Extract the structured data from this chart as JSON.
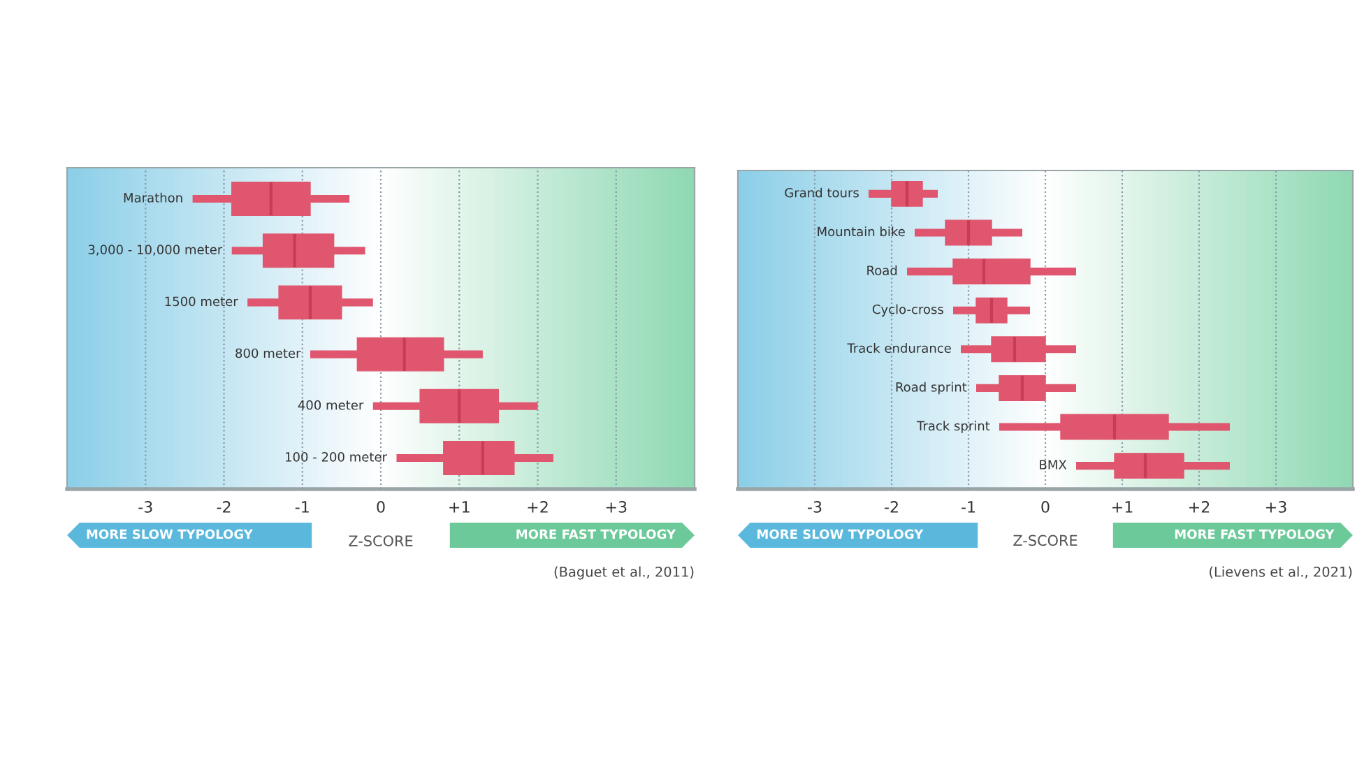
{
  "chart_data": [
    {
      "type": "box",
      "categories": [
        "Marathon",
        "3,000 - 10,000 meter",
        "1500 meter",
        "800 meter",
        "400 meter",
        "100 - 200 meter"
      ],
      "boxes": [
        {
          "low": -2.4,
          "q1": -1.9,
          "median": -1.4,
          "q3": -0.9,
          "high": -0.4
        },
        {
          "low": -1.9,
          "q1": -1.5,
          "median": -1.1,
          "q3": -0.6,
          "high": -0.2
        },
        {
          "low": -1.7,
          "q1": -1.3,
          "median": -0.9,
          "q3": -0.5,
          "high": -0.1
        },
        {
          "low": -0.9,
          "q1": -0.3,
          "median": 0.3,
          "q3": 0.8,
          "high": 1.3
        },
        {
          "low": -0.1,
          "q1": 0.5,
          "median": 1.0,
          "q3": 1.5,
          "high": 2.0
        },
        {
          "low": 0.2,
          "q1": 0.8,
          "median": 1.3,
          "q3": 1.7,
          "high": 2.2
        }
      ],
      "color": "#e0566e",
      "xlim": [
        -4,
        4
      ],
      "xticks": [
        {
          "value": -3,
          "label": "-3"
        },
        {
          "value": -2,
          "label": "-2"
        },
        {
          "value": -1,
          "label": "-1"
        },
        0,
        {
          "value": 1,
          "label": "+1"
        },
        {
          "value": 2,
          "label": "+2"
        },
        {
          "value": 3,
          "label": "+3"
        }
      ],
      "grid": "x",
      "orientation": "horizontal",
      "xlabel": "Z-SCORE",
      "annotations": [
        "MORE SLOW TYPOLOGY",
        "MORE FAST TYPOLOGY",
        "(Baguet et al., 2011)"
      ]
    },
    {
      "type": "box",
      "categories": [
        "Grand tours",
        "Mountain bike",
        "Road",
        "Cyclo-cross",
        "Track endurance",
        "Road sprint",
        "Track sprint",
        "BMX"
      ],
      "boxes": [
        {
          "low": -2.3,
          "q1": -2.0,
          "median": -1.8,
          "q3": -1.6,
          "high": -1.4
        },
        {
          "low": -1.7,
          "q1": -1.3,
          "median": -1.0,
          "q3": -0.7,
          "high": -0.3
        },
        {
          "low": -1.8,
          "q1": -1.2,
          "median": -0.8,
          "q3": -0.2,
          "high": 0.4
        },
        {
          "low": -1.2,
          "q1": -0.9,
          "median": -0.7,
          "q3": -0.5,
          "high": -0.2
        },
        {
          "low": -1.1,
          "q1": -0.7,
          "median": -0.4,
          "q3": 0.0,
          "high": 0.4
        },
        {
          "low": -0.9,
          "q1": -0.6,
          "median": -0.3,
          "q3": 0.0,
          "high": 0.4
        },
        {
          "low": -0.6,
          "q1": 0.2,
          "median": 0.9,
          "q3": 1.6,
          "high": 2.4
        },
        {
          "low": 0.4,
          "q1": 0.9,
          "median": 1.3,
          "q3": 1.8,
          "high": 2.4
        }
      ],
      "color": "#e0566e",
      "xlim": [
        -4,
        4
      ],
      "xticks": [
        {
          "value": -3,
          "label": "-3"
        },
        {
          "value": -2,
          "label": "-2"
        },
        {
          "value": -1,
          "label": "-1"
        },
        0,
        {
          "value": 1,
          "label": "+1"
        },
        {
          "value": 2,
          "label": "+2"
        },
        {
          "value": 3,
          "label": "+3"
        }
      ],
      "grid": "x",
      "orientation": "horizontal",
      "xlabel": "Z-SCORE",
      "annotations": [
        "MORE SLOW TYPOLOGY",
        "MORE FAST TYPOLOGY",
        "(Lievens et al., 2021)"
      ]
    }
  ]
}
